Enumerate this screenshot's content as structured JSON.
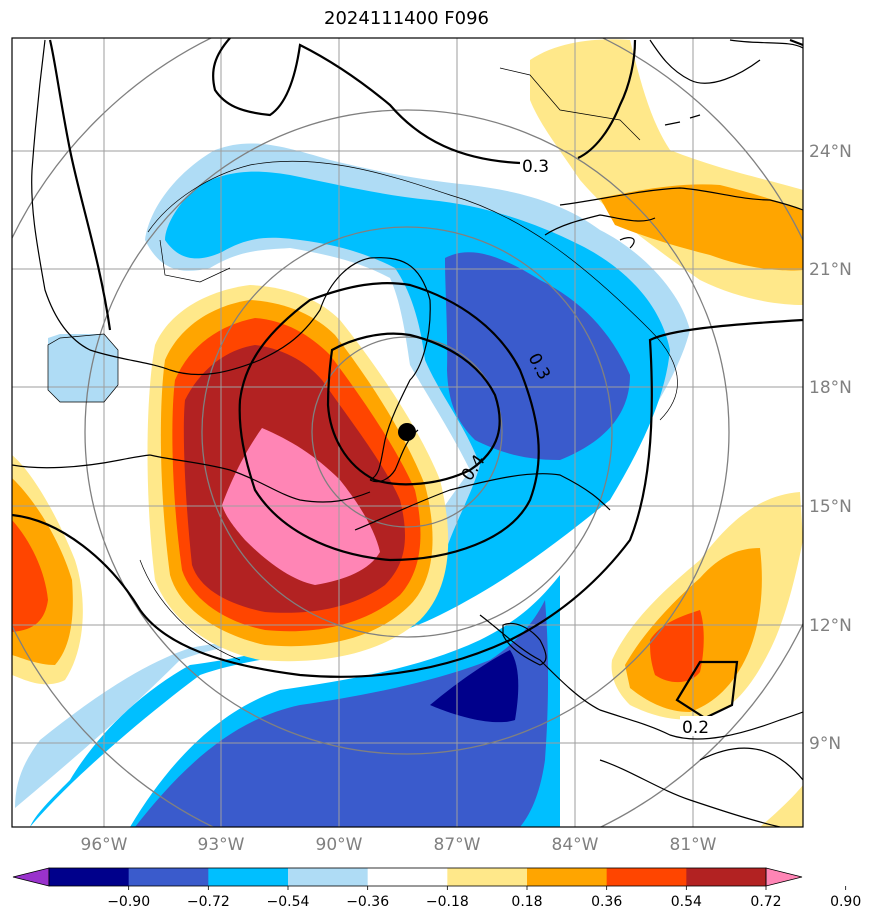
{
  "title": "2024111400 F096",
  "map": {
    "lon_ticks": [
      "96°W",
      "93°W",
      "90°W",
      "87°W",
      "84°W",
      "81°W"
    ],
    "lat_ticks": [
      "24°N",
      "21°N",
      "18°N",
      "15°N",
      "12°N",
      "9°N"
    ],
    "contour_labels": [
      "0.3",
      "0.3",
      "0.4",
      "0.2"
    ],
    "center_marker": "storm-center"
  },
  "colorbar": {
    "ticks": [
      "−0.90",
      "−0.72",
      "−0.54",
      "−0.36",
      "−0.18",
      "0.18",
      "0.36",
      "0.54",
      "0.72",
      "0.90"
    ],
    "colors": [
      "#9932cc",
      "#00008b",
      "#3a5bcc",
      "#00bfff",
      "#afdcf5",
      "#ffffff",
      "#ffe88a",
      "#ffa500",
      "#ff4500",
      "#b22222",
      "#ff85b5"
    ]
  }
}
